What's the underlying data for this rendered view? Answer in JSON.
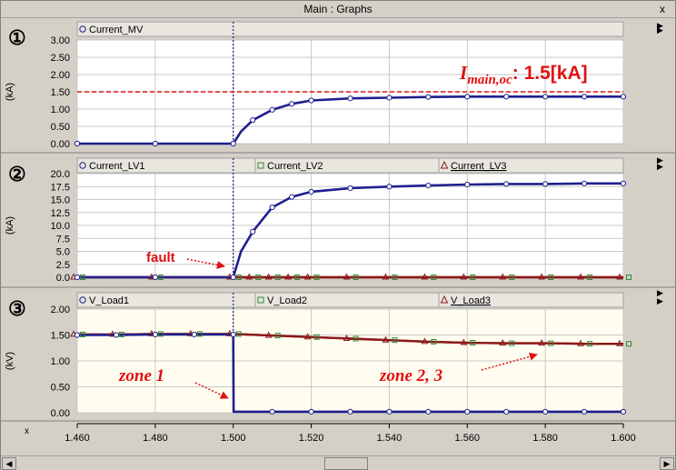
{
  "window": {
    "title": "Main : Graphs",
    "close_glyph": "x"
  },
  "panels": [
    {
      "marker": "①",
      "ylabel": "(kA)",
      "ylim": [
        0,
        3.0
      ],
      "yticks": [
        "0.00",
        "0.50",
        "1.00",
        "1.50",
        "2.00",
        "2.50",
        "3.00"
      ],
      "legend": [
        {
          "name": "Current_MV",
          "symbol": "circle",
          "color": "#1f1f8f"
        }
      ]
    },
    {
      "marker": "②",
      "ylabel": "(kA)",
      "ylim": [
        0,
        20.0
      ],
      "yticks": [
        "0.0",
        "2.5",
        "5.0",
        "7.5",
        "10.0",
        "12.5",
        "15.0",
        "17.5",
        "20.0"
      ],
      "legend": [
        {
          "name": "Current_LV1",
          "symbol": "circle",
          "color": "#1f1f8f"
        },
        {
          "name": "Current_LV2",
          "symbol": "square",
          "color": "#2e8b2e"
        },
        {
          "name": "Current_LV3",
          "symbol": "triangle",
          "color": "#8b1a1a"
        }
      ]
    },
    {
      "marker": "③",
      "ylabel": "(kV)",
      "ylim": [
        0,
        2.0
      ],
      "yticks": [
        "0.00",
        "0.50",
        "1.00",
        "1.50",
        "2.00"
      ],
      "legend": [
        {
          "name": "V_Load1",
          "symbol": "circle",
          "color": "#1f1f8f"
        },
        {
          "name": "V_Load2",
          "symbol": "square",
          "color": "#2e8b2e"
        },
        {
          "name": "V_Load3",
          "symbol": "triangle",
          "color": "#8b1a1a"
        }
      ]
    }
  ],
  "x_axis": {
    "label": "x",
    "ticks": [
      "1.460",
      "1.480",
      "1.500",
      "1.520",
      "1.540",
      "1.560",
      "1.580",
      "1.600"
    ]
  },
  "annotations": {
    "threshold_prefix": "I",
    "threshold_subscript": "main,oc",
    "threshold_value": ": 1.5[kA]",
    "fault": "fault",
    "zone1": "zone 1",
    "zone23": "zone 2, 3"
  },
  "colors": {
    "series_blue": "#1f1f8f",
    "series_red": "#8b1a1a",
    "series_green": "#2e8b2e",
    "annotation_red": "#e01010",
    "plot_bg": "#ffffff",
    "plot_bg_panel3": "#fffdf0"
  },
  "chart_data": [
    {
      "type": "line",
      "title": "",
      "xlabel": "x",
      "ylabel": "(kA)",
      "xlim": [
        1.46,
        1.6
      ],
      "ylim": [
        0,
        3.0
      ],
      "x": [
        1.46,
        1.48,
        1.5,
        1.502,
        1.505,
        1.51,
        1.515,
        1.52,
        1.53,
        1.54,
        1.55,
        1.56,
        1.57,
        1.58,
        1.59,
        1.6
      ],
      "series": [
        {
          "name": "Current_MV",
          "values": [
            0,
            0,
            0,
            0.35,
            0.68,
            0.98,
            1.15,
            1.25,
            1.31,
            1.33,
            1.35,
            1.36,
            1.36,
            1.36,
            1.36,
            1.36
          ]
        }
      ],
      "reference_lines": [
        {
          "y": 1.5
        }
      ]
    },
    {
      "type": "line",
      "title": "",
      "xlabel": "x",
      "ylabel": "(kA)",
      "xlim": [
        1.46,
        1.6
      ],
      "ylim": [
        0,
        20.0
      ],
      "x": [
        1.46,
        1.48,
        1.5,
        1.502,
        1.505,
        1.51,
        1.515,
        1.52,
        1.53,
        1.54,
        1.55,
        1.56,
        1.57,
        1.58,
        1.59,
        1.6
      ],
      "series": [
        {
          "name": "Current_LV1",
          "values": [
            0,
            0,
            0,
            5.0,
            8.8,
            13.5,
            15.5,
            16.5,
            17.2,
            17.5,
            17.7,
            17.9,
            18.0,
            18.0,
            18.1,
            18.1
          ]
        },
        {
          "name": "Current_LV2",
          "values": [
            0,
            0,
            0,
            0,
            0,
            0,
            0,
            0,
            0,
            0,
            0,
            0,
            0,
            0,
            0,
            0
          ]
        },
        {
          "name": "Current_LV3",
          "values": [
            0,
            0,
            0,
            0,
            0,
            0,
            0,
            0,
            0,
            0,
            0,
            0,
            0,
            0,
            0,
            0
          ]
        }
      ]
    },
    {
      "type": "line",
      "title": "",
      "xlabel": "x",
      "ylabel": "(kV)",
      "xlim": [
        1.46,
        1.6
      ],
      "ylim": [
        0,
        2.0
      ],
      "x": [
        1.46,
        1.47,
        1.48,
        1.49,
        1.5,
        1.5001,
        1.51,
        1.52,
        1.53,
        1.54,
        1.55,
        1.56,
        1.57,
        1.58,
        1.59,
        1.6
      ],
      "series": [
        {
          "name": "V_Load1",
          "values": [
            1.5,
            1.5,
            1.51,
            1.51,
            1.51,
            0.02,
            0.02,
            0.02,
            0.02,
            0.02,
            0.02,
            0.02,
            0.02,
            0.02,
            0.02,
            0.02
          ]
        },
        {
          "name": "V_Load2",
          "values": [
            1.51,
            1.51,
            1.52,
            1.52,
            1.52,
            1.52,
            1.49,
            1.46,
            1.43,
            1.4,
            1.37,
            1.35,
            1.34,
            1.34,
            1.33,
            1.33
          ]
        },
        {
          "name": "V_Load3",
          "values": [
            1.51,
            1.51,
            1.52,
            1.52,
            1.52,
            1.52,
            1.49,
            1.46,
            1.43,
            1.4,
            1.37,
            1.35,
            1.34,
            1.34,
            1.33,
            1.33
          ]
        }
      ]
    }
  ]
}
